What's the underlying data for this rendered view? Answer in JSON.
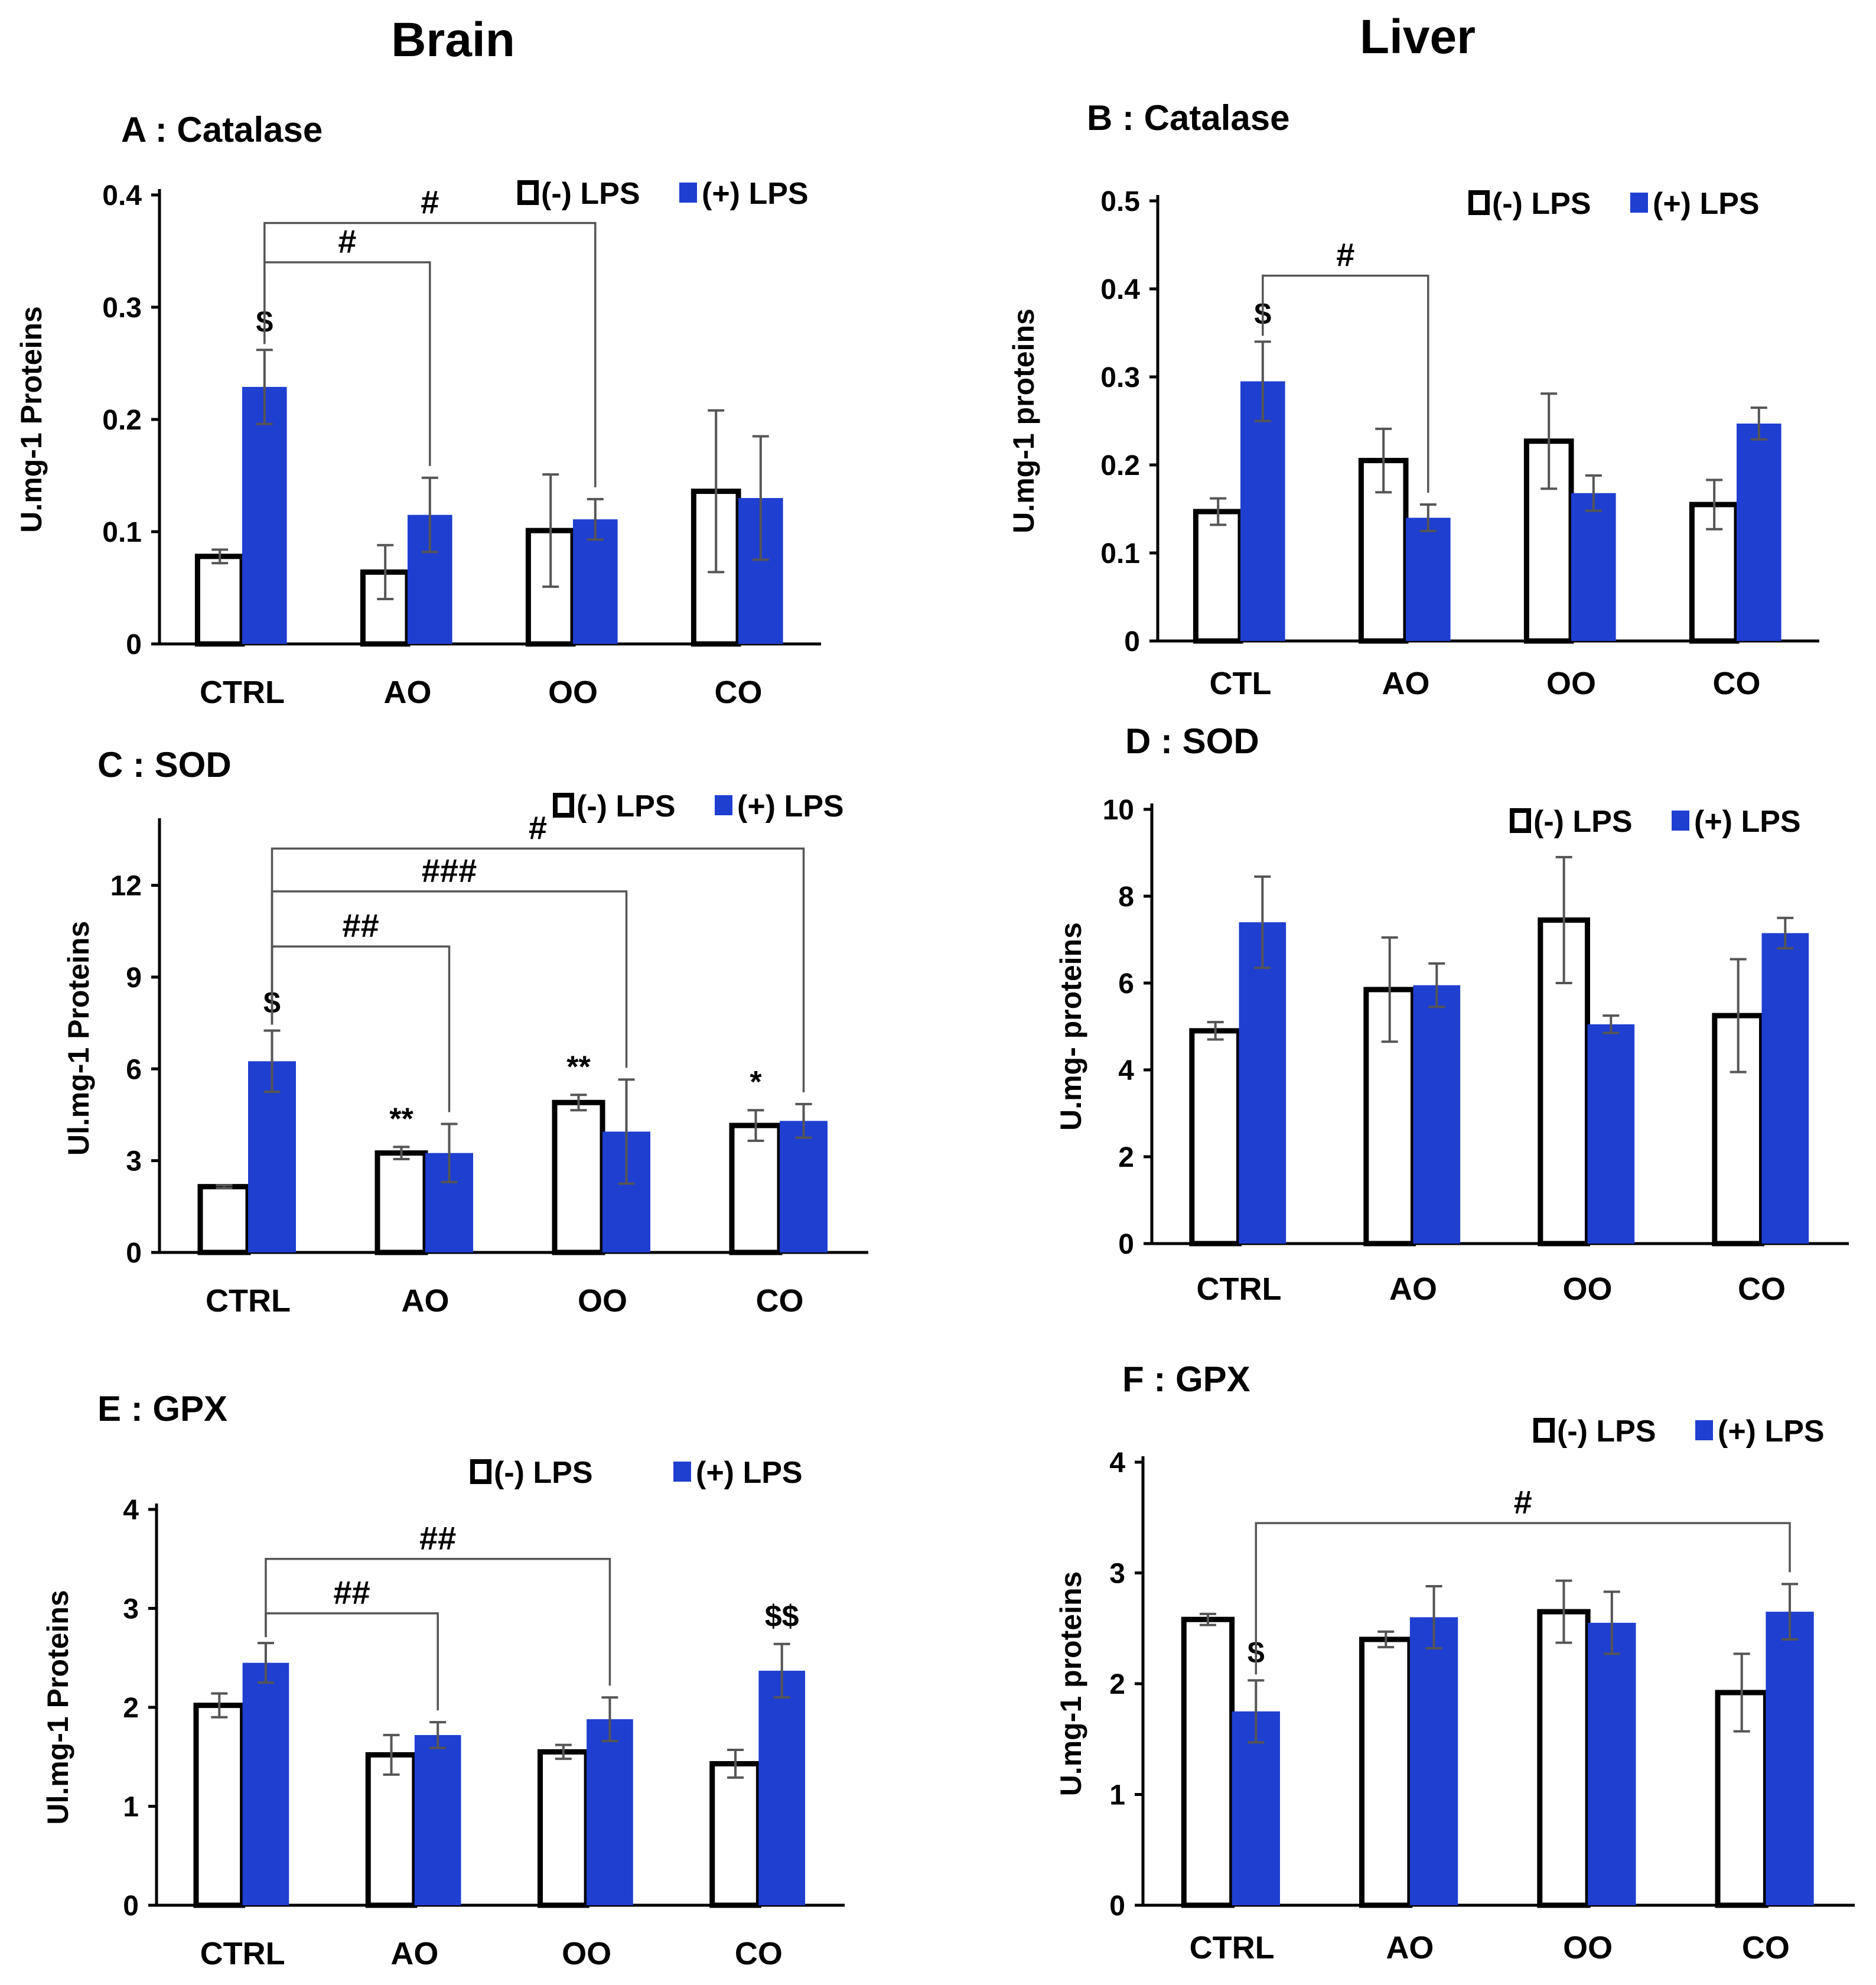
{
  "columns": {
    "left": "Brain",
    "right": "Liver"
  },
  "legend": {
    "neg": "(-) LPS",
    "pos": "(+) LPS"
  },
  "colors": {
    "neg_fill": "#ffffff",
    "pos_fill": "#1f3fd0",
    "axis": "#000000",
    "error_bar": "#555555"
  },
  "chart_data": [
    {
      "id": "A",
      "type": "bar",
      "title": "A : Catalase",
      "ylabel": "U.mg-1 Proteins",
      "ylim": [
        0,
        0.4
      ],
      "yticks": [
        "0",
        "0.1",
        "0.2",
        "0.3",
        "0.4"
      ],
      "ytick_values": [
        0,
        0.1,
        0.2,
        0.3,
        0.4
      ],
      "categories": [
        "CTRL",
        "AO",
        "OO",
        "CO"
      ],
      "series": [
        {
          "name": "(-) LPS",
          "values": [
            0.078,
            0.064,
            0.101,
            0.136
          ],
          "errors": [
            0.006,
            0.024,
            0.05,
            0.072
          ]
        },
        {
          "name": "(+) LPS",
          "values": [
            0.229,
            0.115,
            0.111,
            0.13
          ],
          "errors": [
            0.033,
            0.033,
            0.018,
            0.055
          ]
        }
      ],
      "bar_marks": [
        {
          "text": "$",
          "cat": 0,
          "series": 1
        }
      ],
      "brackets": [
        {
          "text": "#",
          "from": 0,
          "to": 1,
          "top": 0.34
        },
        {
          "text": "#",
          "from": 0,
          "to": 2,
          "top": 0.375
        }
      ]
    },
    {
      "id": "B",
      "type": "bar",
      "title": "B : Catalase",
      "ylabel": "U.mg-1 proteins",
      "ylim": [
        0,
        0.5
      ],
      "yticks": [
        "0",
        "0.1",
        "0.2",
        "0.3",
        "0.4",
        "0.5"
      ],
      "ytick_values": [
        0,
        0.1,
        0.2,
        0.3,
        0.4,
        0.5
      ],
      "categories": [
        "CTL",
        "AO",
        "OO",
        "CO"
      ],
      "series": [
        {
          "name": "(-) LPS",
          "values": [
            0.147,
            0.205,
            0.227,
            0.155
          ],
          "errors": [
            0.015,
            0.036,
            0.054,
            0.028
          ]
        },
        {
          "name": "(+) LPS",
          "values": [
            0.295,
            0.14,
            0.168,
            0.247
          ],
          "errors": [
            0.045,
            0.015,
            0.02,
            0.018
          ]
        }
      ],
      "bar_marks": [
        {
          "text": "$",
          "cat": 0,
          "series": 1
        }
      ],
      "brackets": [
        {
          "text": "#",
          "from": 0,
          "to": 1,
          "top": 0.415
        }
      ]
    },
    {
      "id": "C",
      "type": "bar",
      "title": "C : SOD",
      "ylabel": "Ul.mg-1 Proteins",
      "ylim": [
        0,
        14
      ],
      "yticks": [
        "0",
        "3",
        "6",
        "9",
        "12"
      ],
      "ytick_values": [
        0,
        3,
        6,
        9,
        12
      ],
      "categories": [
        "CTRL",
        "AO",
        "OO",
        "CO"
      ],
      "series": [
        {
          "name": "(-) LPS",
          "values": [
            2.15,
            3.25,
            4.9,
            4.15
          ],
          "errors": [
            0.05,
            0.2,
            0.25,
            0.5
          ]
        },
        {
          "name": "(+) LPS",
          "values": [
            6.25,
            3.25,
            3.95,
            4.3
          ],
          "errors": [
            1.0,
            0.95,
            1.7,
            0.55
          ]
        }
      ],
      "bar_marks": [
        {
          "text": "$",
          "cat": 0,
          "series": 1
        },
        {
          "text": "**",
          "cat": 1,
          "series": 0
        },
        {
          "text": "**",
          "cat": 2,
          "series": 0
        },
        {
          "text": "*",
          "cat": 3,
          "series": 0
        }
      ],
      "brackets": [
        {
          "text": "##",
          "from": 0,
          "to": 1,
          "top": 10.0
        },
        {
          "text": "###",
          "from": 0,
          "to": 2,
          "top": 11.8
        },
        {
          "text": "#",
          "from": 0,
          "to": 3,
          "top": 13.2
        }
      ]
    },
    {
      "id": "D",
      "type": "bar",
      "title": "D : SOD",
      "ylabel": "U.mg- proteins",
      "ylim": [
        0,
        10
      ],
      "yticks": [
        "0",
        "2",
        "4",
        "6",
        "8",
        "10"
      ],
      "ytick_values": [
        0,
        2,
        4,
        6,
        8,
        10
      ],
      "categories": [
        "CTRL",
        "AO",
        "OO",
        "CO"
      ],
      "series": [
        {
          "name": "(-) LPS",
          "values": [
            4.9,
            5.85,
            7.45,
            5.25
          ],
          "errors": [
            0.2,
            1.2,
            1.45,
            1.3
          ]
        },
        {
          "name": "(+) LPS",
          "values": [
            7.4,
            5.95,
            5.05,
            7.15
          ],
          "errors": [
            1.05,
            0.5,
            0.2,
            0.35
          ]
        }
      ],
      "bar_marks": [],
      "brackets": []
    },
    {
      "id": "E",
      "type": "bar",
      "title": "E : GPX",
      "ylabel": "Ul.mg-1 Proteins",
      "ylim": [
        0,
        4
      ],
      "yticks": [
        "0",
        "1",
        "2",
        "3",
        "4"
      ],
      "ytick_values": [
        0,
        1,
        2,
        3,
        4
      ],
      "categories": [
        "CTRL",
        "AO",
        "OO",
        "CO"
      ],
      "series": [
        {
          "name": "(-) LPS",
          "values": [
            2.02,
            1.52,
            1.55,
            1.43
          ],
          "errors": [
            0.12,
            0.2,
            0.07,
            0.14
          ]
        },
        {
          "name": "(+) LPS",
          "values": [
            2.45,
            1.72,
            1.88,
            2.37
          ],
          "errors": [
            0.2,
            0.13,
            0.22,
            0.27
          ]
        }
      ],
      "bar_marks": [
        {
          "text": "$$",
          "cat": 3,
          "series": 1
        }
      ],
      "brackets": [
        {
          "text": "##",
          "from": 0,
          "to": 1,
          "top": 2.95
        },
        {
          "text": "##",
          "from": 0,
          "to": 2,
          "top": 3.5
        }
      ]
    },
    {
      "id": "F",
      "type": "bar",
      "title": "F : GPX",
      "ylabel": "U.mg-1 proteins",
      "ylim": [
        0,
        4
      ],
      "yticks": [
        "0",
        "1",
        "2",
        "3",
        "4"
      ],
      "ytick_values": [
        0,
        1,
        2,
        3,
        4
      ],
      "categories": [
        "CTRL",
        "AO",
        "OO",
        "CO"
      ],
      "series": [
        {
          "name": "(-) LPS",
          "values": [
            2.58,
            2.4,
            2.65,
            1.92
          ],
          "errors": [
            0.05,
            0.07,
            0.28,
            0.35
          ]
        },
        {
          "name": "(+) LPS",
          "values": [
            1.75,
            2.6,
            2.55,
            2.65
          ],
          "errors": [
            0.28,
            0.28,
            0.28,
            0.25
          ]
        }
      ],
      "bar_marks": [
        {
          "text": "$",
          "cat": 0,
          "series": 1
        }
      ],
      "brackets": [
        {
          "text": "#",
          "from": 0,
          "to": 3,
          "top": 3.45
        }
      ]
    }
  ]
}
